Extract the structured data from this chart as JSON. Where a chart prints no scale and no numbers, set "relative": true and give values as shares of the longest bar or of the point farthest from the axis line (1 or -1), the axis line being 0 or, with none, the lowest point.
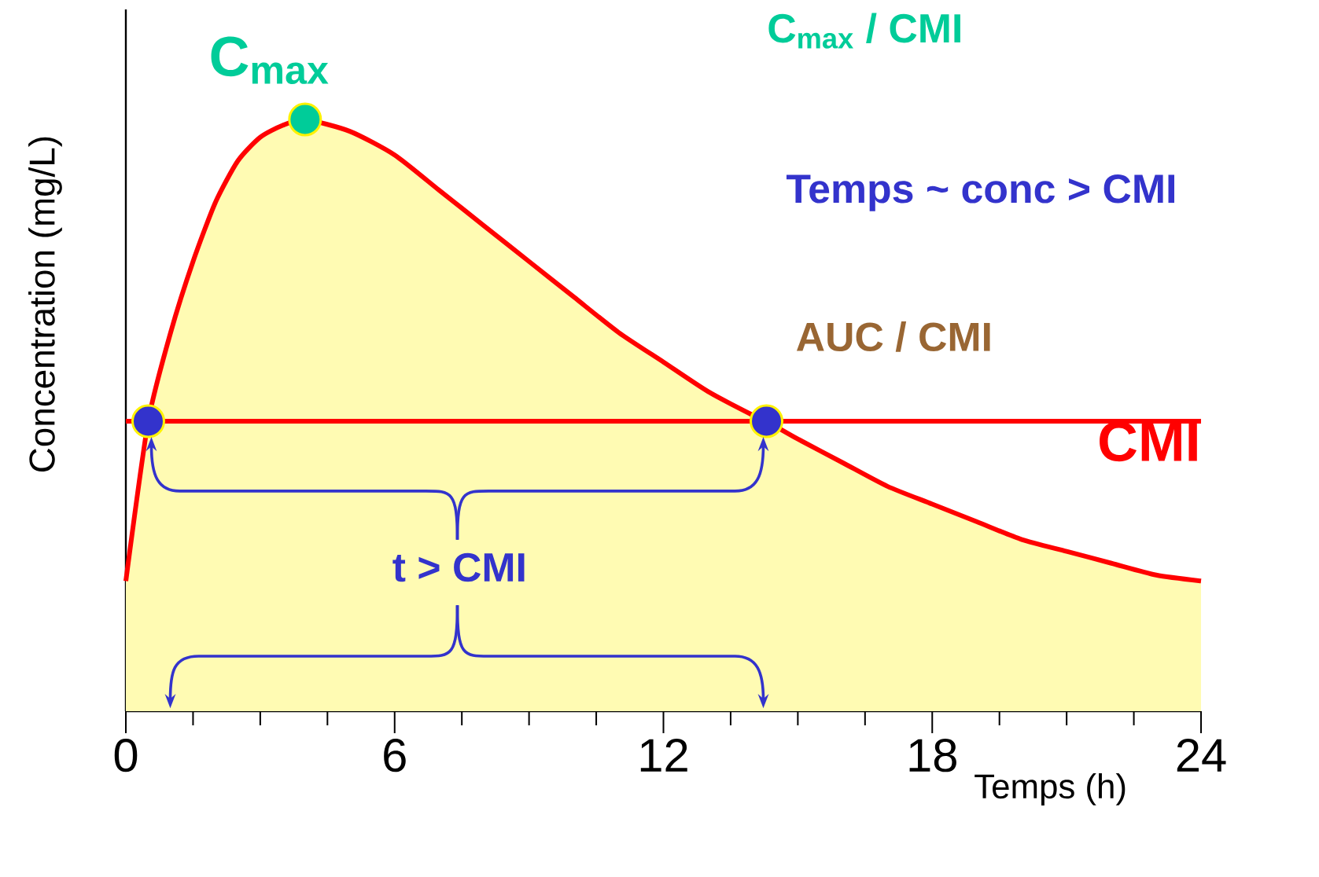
{
  "chart_data": {
    "type": "area",
    "relative": true,
    "xlabel": "Temps (h)",
    "ylabel": "Concentration (mg/L)",
    "xlim": [
      0,
      24
    ],
    "xticks": [
      0,
      6,
      12,
      18,
      24
    ],
    "series": [
      {
        "type": "area",
        "color": "#ff0000",
        "x": [
          0,
          0.5,
          1,
          1.5,
          2,
          2.5,
          3,
          3.5,
          4,
          5,
          6,
          7,
          8,
          9,
          10,
          11,
          12,
          13,
          14,
          14.3,
          15,
          16,
          17,
          18,
          19,
          20,
          21,
          22,
          23,
          24
        ],
        "values": [
          0.22,
          0.49,
          0.64,
          0.76,
          0.86,
          0.93,
          0.97,
          0.99,
          1.0,
          0.98,
          0.94,
          0.88,
          0.82,
          0.76,
          0.7,
          0.64,
          0.59,
          0.54,
          0.5,
          0.49,
          0.46,
          0.42,
          0.38,
          0.35,
          0.32,
          0.29,
          0.27,
          0.25,
          0.23,
          0.22
        ]
      },
      {
        "type": "scatter",
        "marker": "circle",
        "x": [
          0.5,
          4,
          14.3
        ],
        "values": [
          0.49,
          1.0,
          0.49
        ],
        "colors": [
          "#3333cc",
          "#00cc99",
          "#3333cc"
        ]
      }
    ],
    "ref_lines": [
      {
        "axis": "y",
        "value": 0.49,
        "label": "CMI",
        "color": "#ff0000"
      }
    ],
    "annotations": [
      "C$_{max}$",
      "C$_{max}$ / CMI",
      "Temps ~ conc > CMI",
      "AUC / CMI",
      "t > CMI"
    ],
    "grid": false
  }
}
